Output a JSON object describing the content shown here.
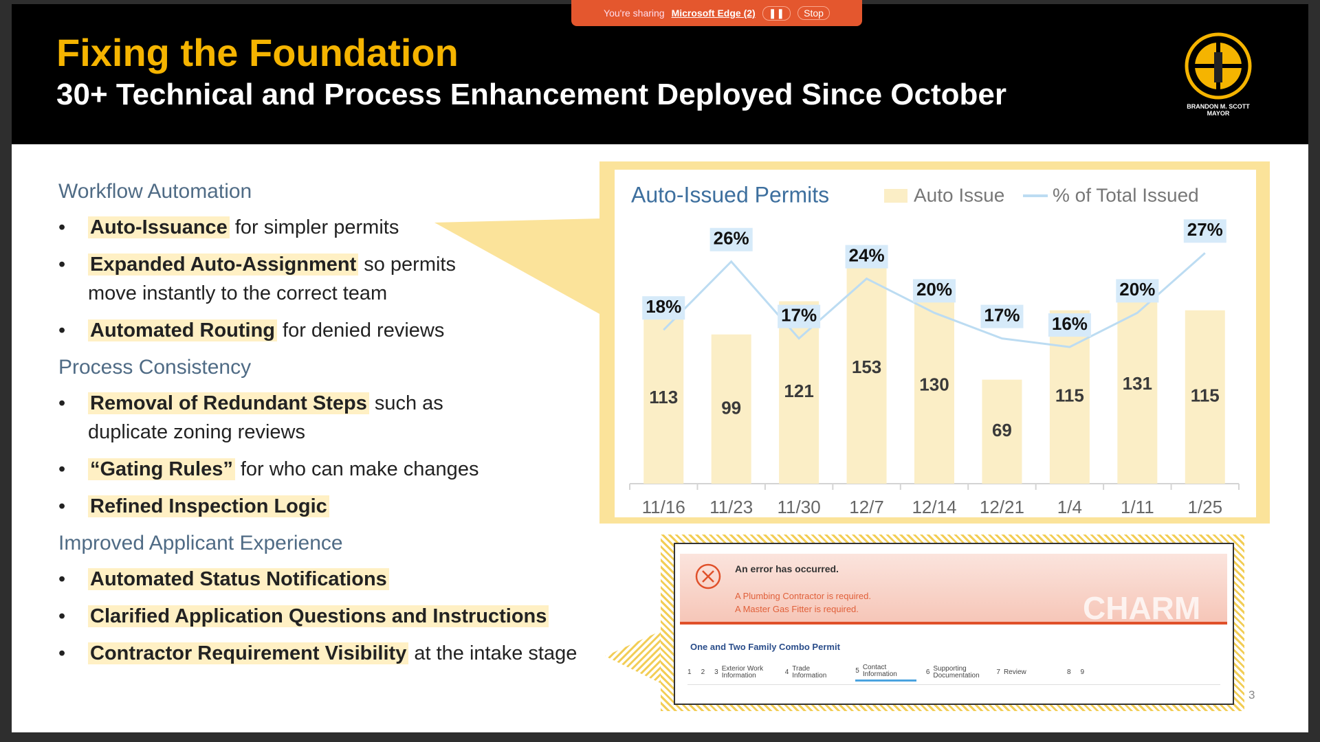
{
  "share_bar": {
    "text": "You're sharing",
    "app": "Microsoft Edge (2)",
    "stop": "Stop"
  },
  "header": {
    "title": "Fixing the Foundation",
    "subtitle": "30+ Technical and Process Enhancement Deployed Since October",
    "logo_name": "BRANDON M. SCOTT",
    "logo_role": "MAYOR"
  },
  "sections": [
    {
      "heading": "Workflow Automation",
      "items": [
        {
          "highlight": "Auto-Issuance",
          "text": "for simpler permits"
        },
        {
          "highlight": "Expanded Auto-Assignment",
          "text": "so permits move instantly to the correct team"
        },
        {
          "highlight": "Automated Routing",
          "text": "for denied reviews"
        }
      ]
    },
    {
      "heading": "Process Consistency",
      "items": [
        {
          "highlight": "Removal of Redundant Steps",
          "text": "such as duplicate zoning reviews"
        },
        {
          "highlight": "“Gating Rules”",
          "text": "for who can make changes"
        },
        {
          "highlight": "Refined Inspection Logic"
        }
      ]
    },
    {
      "heading": "Improved Applicant Experience",
      "items": [
        {
          "highlight": "Automated Status Notifications"
        },
        {
          "highlight": "Clarified Application Questions and Instructions"
        },
        {
          "highlight": "Contractor Requirement Visibility",
          "text": "at the intake stage"
        }
      ]
    }
  ],
  "chart_data": {
    "type": "bar",
    "title": "Auto-Issued Permits",
    "categories": [
      "11/16",
      "11/23",
      "11/30",
      "12/7",
      "12/14",
      "12/21",
      "1/4",
      "1/11",
      "1/25"
    ],
    "series": [
      {
        "name": "Auto Issue",
        "type": "bar",
        "color": "#fbeec6",
        "values": [
          113,
          99,
          121,
          153,
          130,
          69,
          115,
          131,
          115
        ]
      },
      {
        "name": "% of Total Issued",
        "type": "line",
        "axis": "y2",
        "color": "#bcdcf2",
        "values": [
          18,
          26,
          17,
          24,
          20,
          17,
          16,
          20,
          27
        ],
        "value_labels": [
          "18%",
          "26%",
          "17%",
          "24%",
          "20%",
          "17%",
          "16%",
          "20%",
          "27%"
        ]
      }
    ],
    "ylim": [
      0,
      170
    ],
    "y2lim": [
      0,
      30
    ]
  },
  "error_panel": {
    "title": "An error has occurred.",
    "messages": [
      "A Plumbing Contractor is required.",
      "A Master Gas Fitter is required."
    ],
    "watermark": "CHARM",
    "form_title": "One and Two Family Combo Permit",
    "steps": [
      {
        "num": "1"
      },
      {
        "num": "2"
      },
      {
        "num": "3",
        "label": "Exterior Work Information"
      },
      {
        "num": "4",
        "label": "Trade Information"
      },
      {
        "num": "5",
        "label": "Contact Information"
      },
      {
        "num": "6",
        "label": "Supporting Documentation"
      },
      {
        "num": "7",
        "label": "Review"
      },
      {
        "num": "8"
      },
      {
        "num": "9"
      }
    ]
  },
  "page_number": "3"
}
